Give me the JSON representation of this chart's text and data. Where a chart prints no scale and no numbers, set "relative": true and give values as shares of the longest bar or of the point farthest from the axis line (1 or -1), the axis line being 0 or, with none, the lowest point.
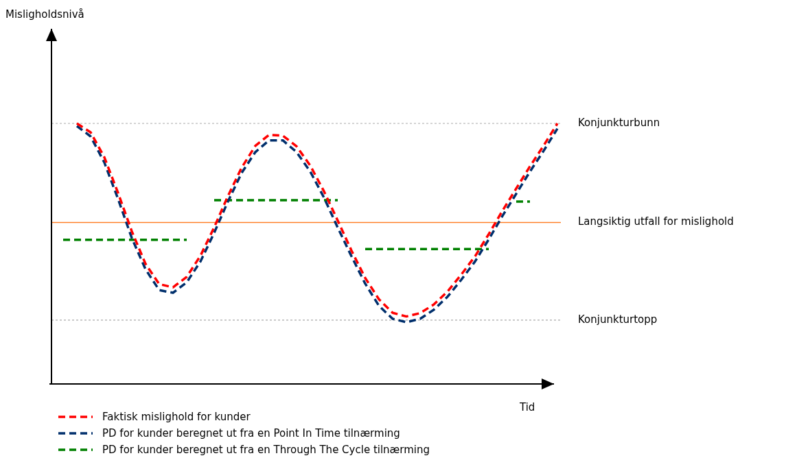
{
  "chart_data": {
    "type": "line",
    "relative": true,
    "annotations": [
      "Misligholdsnivå"
    ],
    "xlabel": "Tid",
    "legend": "bottom left",
    "line_style": "dashed",
    "marker": "none",
    "grid": false,
    "categories": [
      null,
      null,
      null,
      null,
      null,
      null,
      null,
      null,
      null,
      null,
      null,
      null,
      null,
      null,
      null,
      null,
      null,
      null,
      null,
      null,
      null,
      null,
      null,
      null,
      null,
      null,
      null,
      null,
      null,
      null,
      null,
      null,
      null,
      null,
      null,
      null,
      null,
      null
    ],
    "series": [
      {
        "name": "Faktisk mislighold for kunder",
        "color": "#ff0000",
        "values": [
          null,
          null,
          1.0,
          0.966,
          0.87,
          0.733,
          0.586,
          0.461,
          0.383,
          0.371,
          0.411,
          0.492,
          0.601,
          0.721,
          0.83,
          0.914,
          0.956,
          0.953,
          0.912,
          0.838,
          0.739,
          0.627,
          0.512,
          0.407,
          0.325,
          0.273,
          0.259,
          0.272,
          0.305,
          0.355,
          0.42,
          0.49,
          0.575,
          0.665,
          0.75,
          0.835,
          0.915,
          1.0
        ]
      },
      {
        "name": "PD for kunder beregnet ut fra en Point In Time tilnærming",
        "color": "#002f6c",
        "values": [
          null,
          null,
          0.99,
          0.95,
          0.85,
          0.71,
          0.56,
          0.44,
          0.36,
          0.35,
          0.39,
          0.47,
          0.58,
          0.7,
          0.81,
          0.89,
          0.935,
          0.935,
          0.89,
          0.815,
          0.715,
          0.6,
          0.49,
          0.385,
          0.3,
          0.25,
          0.237,
          0.25,
          0.285,
          0.335,
          0.4,
          0.47,
          0.555,
          0.645,
          0.73,
          0.815,
          0.895,
          0.98
        ]
      },
      {
        "name": "PD for kunder beregnet ut fra en Through The Cycle tilnærming",
        "color": "#008000",
        "values": [
          null,
          0.553,
          0.553,
          0.553,
          0.553,
          0.553,
          0.553,
          0.553,
          0.553,
          0.553,
          0.553,
          null,
          0.705,
          0.705,
          0.705,
          0.705,
          0.705,
          0.705,
          0.705,
          0.705,
          0.705,
          0.705,
          null,
          0.518,
          0.518,
          0.518,
          0.518,
          0.518,
          0.518,
          0.518,
          0.518,
          0.518,
          0.518,
          null,
          0.7,
          0.7,
          null,
          null
        ]
      }
    ],
    "ref_lines": [
      {
        "axis": "y",
        "value": 1.0,
        "label": "Konjunkturbunn",
        "color": "#aaaaaa",
        "line_style": "dotted"
      },
      {
        "axis": "y",
        "value": 0.62,
        "label": "Langsiktig utfall for mislighold",
        "color": "#ff7f27",
        "line_style": "solid"
      },
      {
        "axis": "y",
        "value": 0.245,
        "label": "Konjunkturtopp",
        "color": "#aaaaaa",
        "line_style": "dotted"
      }
    ]
  }
}
